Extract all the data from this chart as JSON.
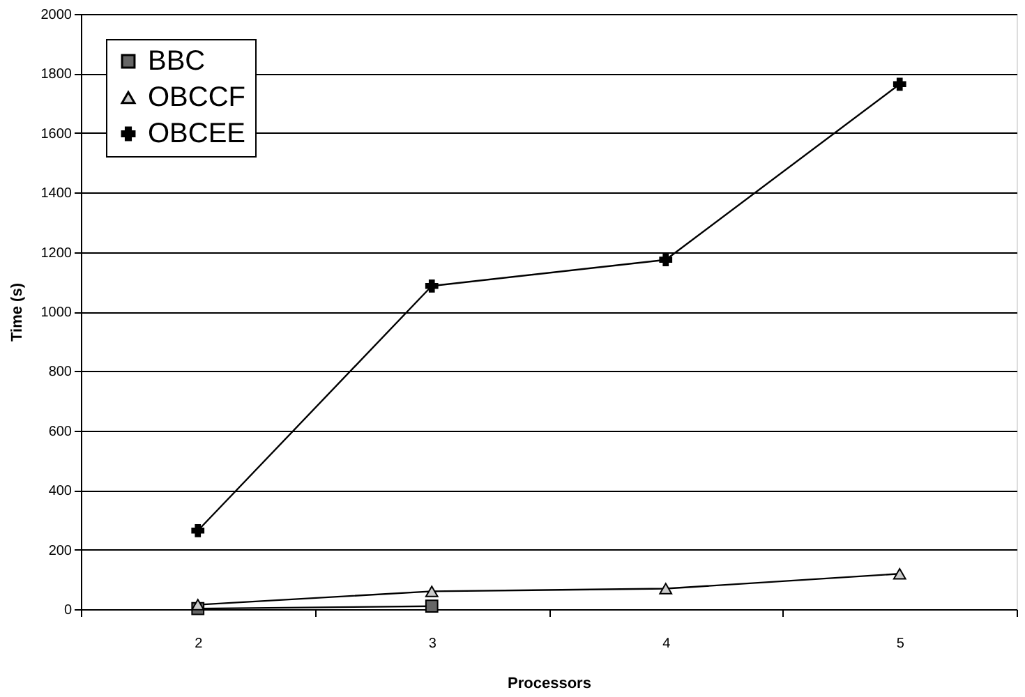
{
  "chart_data": {
    "type": "line",
    "xlabel": "Processors",
    "ylabel": "Time (s)",
    "categories": [
      "2",
      "3",
      "4",
      "5"
    ],
    "series": [
      {
        "name": "BBC",
        "color": "#000000",
        "marker": "square",
        "values": [
          2,
          10,
          null,
          null
        ]
      },
      {
        "name": "OBCCF",
        "color": "#000000",
        "marker": "triangle",
        "values": [
          15,
          60,
          69,
          119
        ]
      },
      {
        "name": "OBCEE",
        "color": "#000000",
        "marker": "cross",
        "values": [
          264,
          1086,
          1174,
          1764
        ]
      }
    ],
    "ylim": [
      0,
      2000
    ],
    "yticks": [
      0,
      200,
      400,
      600,
      800,
      1000,
      1200,
      1400,
      1600,
      1800,
      2000
    ],
    "grid": "y",
    "legend": "top left",
    "line_style": "solid"
  }
}
